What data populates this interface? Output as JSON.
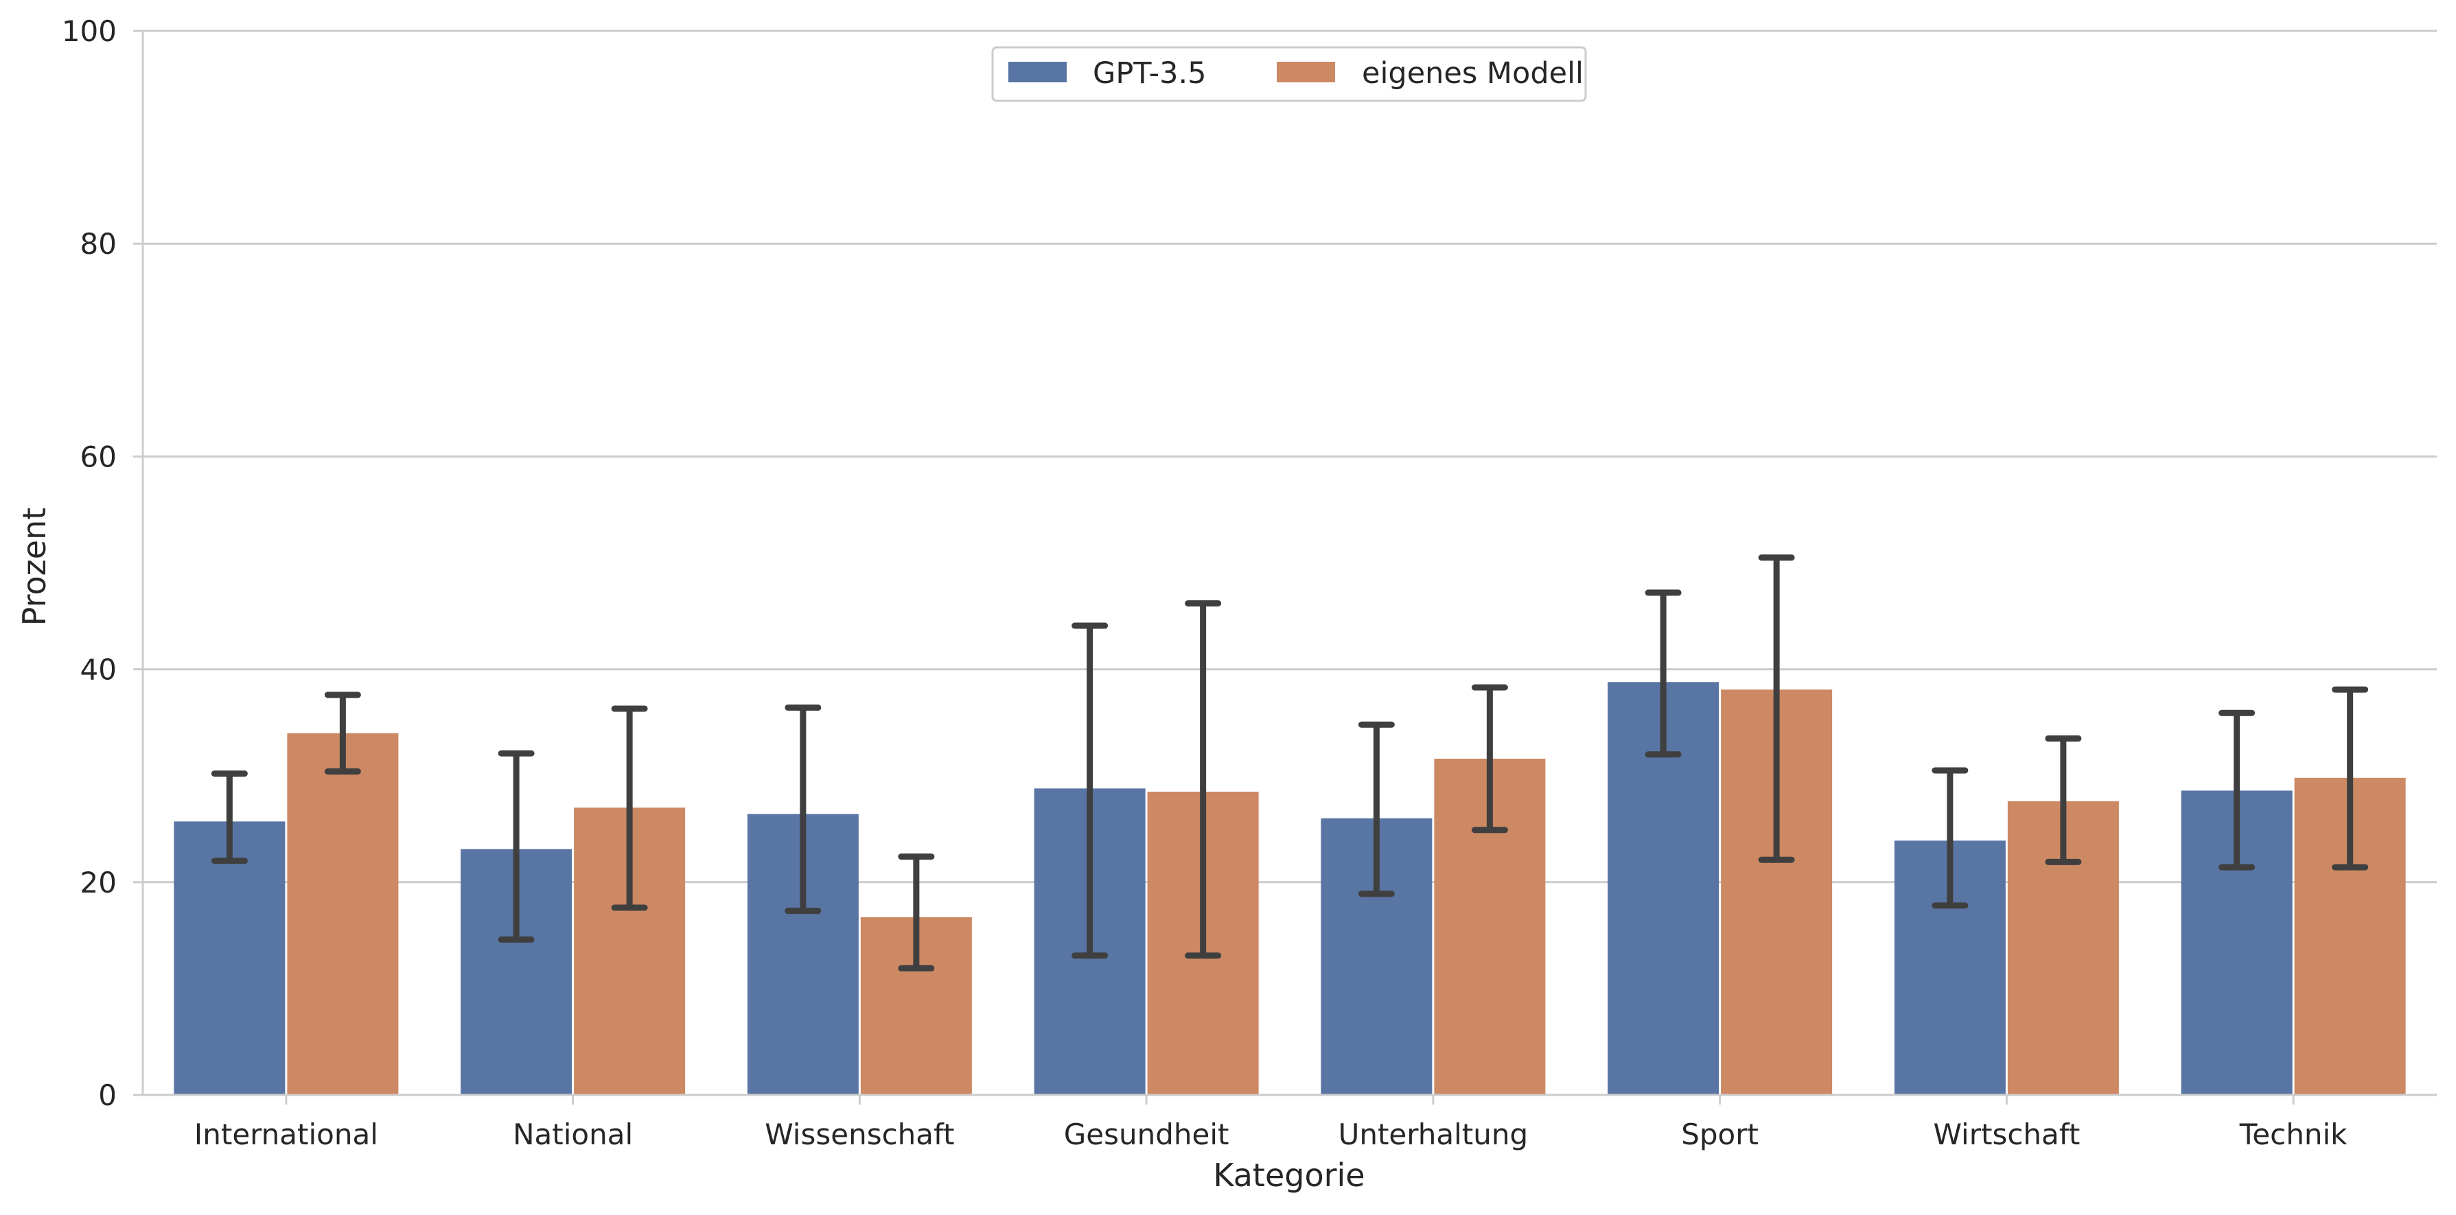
{
  "chart_data": {
    "type": "bar",
    "xlabel": "Kategorie",
    "ylabel": "Prozent",
    "ylim": [
      0,
      100
    ],
    "yticks": [
      "0",
      "20",
      "40",
      "60",
      "80",
      "100"
    ],
    "grid": "horizontal",
    "legend_position": "top-center",
    "categories": [
      "International",
      "National",
      "Wissenschaft",
      "Gesundheit",
      "Unterhaltung",
      "Sport",
      "Wirtschaft",
      "Technik"
    ],
    "series": [
      {
        "name": "GPT-3.5",
        "color": "#5975a4",
        "values": [
          25.7,
          23.1,
          26.4,
          28.8,
          26.0,
          38.8,
          23.9,
          28.6
        ],
        "error_low": [
          22.0,
          14.6,
          17.3,
          13.1,
          18.9,
          32.0,
          17.8,
          21.4
        ],
        "error_high": [
          30.2,
          32.1,
          36.4,
          44.1,
          34.8,
          47.2,
          30.5,
          35.9
        ]
      },
      {
        "name": "eigenes Modell",
        "color": "#cc8963",
        "values": [
          34.0,
          27.0,
          16.7,
          28.5,
          31.6,
          38.1,
          27.6,
          29.8
        ],
        "error_low": [
          30.4,
          17.6,
          11.9,
          13.1,
          24.9,
          22.1,
          21.9,
          21.4
        ],
        "error_high": [
          37.6,
          36.3,
          22.4,
          46.2,
          38.3,
          50.5,
          33.5,
          38.1
        ]
      }
    ]
  }
}
